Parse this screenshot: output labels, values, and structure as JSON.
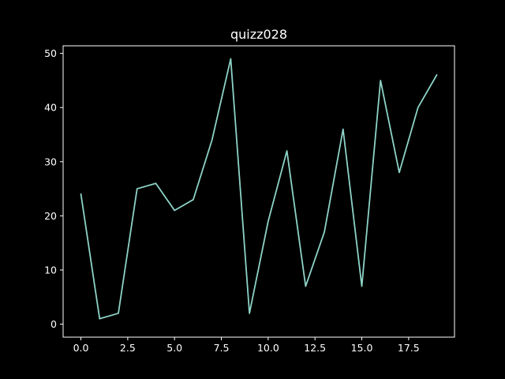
{
  "chart_data": {
    "type": "line",
    "title": "quizz028",
    "xlabel": "",
    "ylabel": "",
    "x": [
      0,
      1,
      2,
      3,
      4,
      5,
      6,
      7,
      8,
      9,
      10,
      11,
      12,
      13,
      14,
      15,
      16,
      17,
      18,
      19
    ],
    "series": [
      {
        "values": [
          24,
          1,
          2,
          25,
          26,
          21,
          23,
          34,
          49,
          2,
          19,
          32,
          7,
          17,
          36,
          7,
          45,
          28,
          40,
          46
        ]
      }
    ],
    "xlim": [
      -0.95,
      19.95
    ],
    "ylim": [
      -2.4,
      51.4
    ],
    "xticks": [
      0.0,
      2.5,
      5.0,
      7.5,
      10.0,
      12.5,
      15.0,
      17.5
    ],
    "xtick_labels": [
      "0.0",
      "2.5",
      "5.0",
      "7.5",
      "10.0",
      "12.5",
      "15.0",
      "17.5"
    ],
    "yticks": [
      0,
      10,
      20,
      30,
      40,
      50
    ],
    "ytick_labels": [
      "0",
      "10",
      "20",
      "30",
      "40",
      "50"
    ],
    "grid": false,
    "colors": {
      "background": "#000000",
      "axes": "#ffffff",
      "line": "#8dd3c7"
    }
  }
}
